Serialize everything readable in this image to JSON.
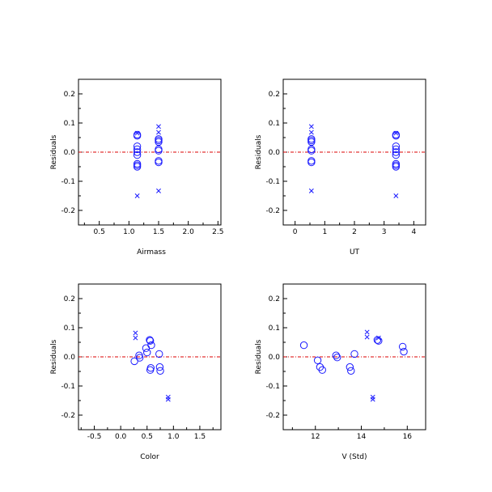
{
  "chart_data": [
    {
      "type": "scatter",
      "xlabel": "Airmass",
      "ylabel": "Residuals",
      "xlim": [
        0.15,
        2.55
      ],
      "ylim": [
        -0.25,
        0.25
      ],
      "xticks": [
        0.5,
        1.0,
        1.5,
        2.0,
        2.5
      ],
      "xticklabels": [
        "0.5",
        "1.0",
        "1.5",
        "2.0",
        "2.5"
      ],
      "yticks": [
        -0.2,
        -0.1,
        0.0,
        0.1,
        0.2
      ],
      "yticklabels": [
        "-0.2",
        "-0.1",
        "0.0",
        "0.1",
        "0.2"
      ],
      "reference_line": {
        "y": 0,
        "color": "#dd0000",
        "style": "dash-dot"
      },
      "series": [
        {
          "marker": "circle",
          "color": "#1a1aff",
          "x": [
            1.14,
            1.14,
            1.14,
            1.14,
            1.14,
            1.14,
            1.14,
            1.14,
            1.14,
            1.5,
            1.5,
            1.5,
            1.5,
            1.5,
            1.5,
            1.5
          ],
          "y": [
            0.056,
            0.06,
            0.02,
            0.01,
            0.0,
            -0.01,
            -0.04,
            -0.045,
            -0.05,
            0.045,
            0.04,
            0.035,
            0.01,
            0.005,
            -0.03,
            -0.035
          ]
        },
        {
          "marker": "x",
          "color": "#1a1aff",
          "x": [
            1.14,
            1.14,
            1.5,
            1.5,
            1.5
          ],
          "y": [
            0.065,
            -0.15,
            0.088,
            0.068,
            -0.133
          ]
        }
      ]
    },
    {
      "type": "scatter",
      "xlabel": "UT",
      "ylabel": "Residuals",
      "xlim": [
        -0.4,
        4.4
      ],
      "ylim": [
        -0.25,
        0.25
      ],
      "xticks": [
        0,
        1,
        2,
        3,
        4
      ],
      "xticklabels": [
        "0",
        "1",
        "2",
        "3",
        "4"
      ],
      "yticks": [
        -0.2,
        -0.1,
        0.0,
        0.1,
        0.2
      ],
      "yticklabels": [
        "-0.2",
        "-0.1",
        "0.0",
        "0.1",
        "0.2"
      ],
      "reference_line": {
        "y": 0,
        "color": "#dd0000",
        "style": "dash-dot"
      },
      "series": [
        {
          "marker": "circle",
          "color": "#1a1aff",
          "x": [
            0.55,
            0.55,
            0.55,
            0.55,
            0.55,
            0.55,
            0.55,
            3.4,
            3.4,
            3.4,
            3.4,
            3.4,
            3.4,
            3.4,
            3.4,
            3.4
          ],
          "y": [
            0.045,
            0.04,
            0.035,
            0.01,
            0.005,
            -0.03,
            -0.035,
            0.056,
            0.06,
            0.02,
            0.01,
            0.0,
            -0.01,
            -0.04,
            -0.045,
            -0.05
          ]
        },
        {
          "marker": "x",
          "color": "#1a1aff",
          "x": [
            0.55,
            0.55,
            0.55,
            3.4,
            3.4
          ],
          "y": [
            0.088,
            0.068,
            -0.133,
            0.065,
            -0.15
          ]
        }
      ]
    },
    {
      "type": "scatter",
      "xlabel": "Color",
      "ylabel": "Residuals",
      "xlim": [
        -0.8,
        1.9
      ],
      "ylim": [
        -0.25,
        0.25
      ],
      "xticks": [
        -0.5,
        0.0,
        0.5,
        1.0,
        1.5
      ],
      "xticklabels": [
        "-0.5",
        "0.0",
        "0.5",
        "1.0",
        "1.5"
      ],
      "yticks": [
        -0.2,
        -0.1,
        0.0,
        0.1,
        0.2
      ],
      "yticklabels": [
        "-0.2",
        "-0.1",
        "0.0",
        "0.1",
        "0.2"
      ],
      "reference_line": {
        "y": 0,
        "color": "#dd0000",
        "style": "dash-dot"
      },
      "series": [
        {
          "marker": "circle",
          "color": "#1a1aff",
          "x": [
            0.26,
            0.35,
            0.36,
            0.48,
            0.5,
            0.55,
            0.56,
            0.58,
            0.57,
            0.56,
            0.73,
            0.74,
            0.75
          ],
          "y": [
            -0.015,
            0.005,
            -0.003,
            0.03,
            0.015,
            0.058,
            0.055,
            0.04,
            -0.038,
            -0.045,
            0.01,
            -0.035,
            -0.048
          ]
        },
        {
          "marker": "x",
          "color": "#1a1aff",
          "x": [
            0.28,
            0.28,
            0.9,
            0.9
          ],
          "y": [
            0.082,
            0.065,
            -0.138,
            -0.146
          ]
        }
      ]
    },
    {
      "type": "scatter",
      "xlabel": "V (Std)",
      "ylabel": "Residuals",
      "xlim": [
        10.6,
        16.8
      ],
      "ylim": [
        -0.25,
        0.25
      ],
      "xticks": [
        12,
        14,
        16
      ],
      "xticklabels": [
        "12",
        "14",
        "16"
      ],
      "yticks": [
        -0.2,
        -0.1,
        0.0,
        0.1,
        0.2
      ],
      "yticklabels": [
        "-0.2",
        "-0.1",
        "0.0",
        "0.1",
        "0.2"
      ],
      "reference_line": {
        "y": 0,
        "color": "#dd0000",
        "style": "dash-dot"
      },
      "series": [
        {
          "marker": "circle",
          "color": "#1a1aff",
          "x": [
            11.5,
            12.1,
            12.2,
            12.3,
            12.9,
            12.95,
            13.5,
            13.55,
            13.7,
            14.7,
            14.75,
            15.8,
            15.85
          ],
          "y": [
            0.04,
            -0.012,
            -0.035,
            -0.045,
            0.005,
            -0.002,
            -0.035,
            -0.048,
            0.01,
            0.058,
            0.055,
            0.035,
            0.018
          ]
        },
        {
          "marker": "x",
          "color": "#1a1aff",
          "x": [
            14.25,
            14.25,
            14.75,
            14.5,
            14.5
          ],
          "y": [
            0.085,
            0.068,
            0.065,
            -0.138,
            -0.146
          ]
        }
      ]
    }
  ]
}
